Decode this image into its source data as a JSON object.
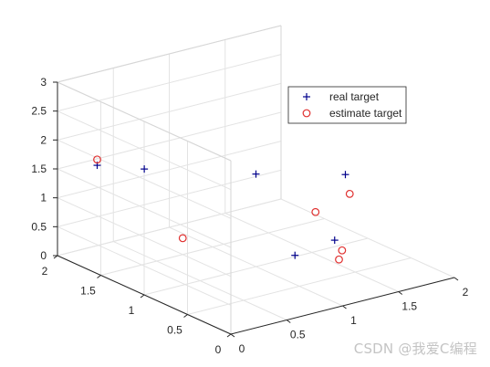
{
  "chart_data": {
    "type": "scatter",
    "dims": 3,
    "title": "",
    "xlabel": "",
    "ylabel": "",
    "zlabel": "",
    "xlim": [
      0,
      2
    ],
    "ylim": [
      0,
      2
    ],
    "zlim": [
      0,
      3
    ],
    "xticks": [
      "0",
      "0.5",
      "1",
      "1.5",
      "2"
    ],
    "yticks": [
      "0",
      "0.5",
      "1",
      "1.5",
      "2"
    ],
    "zticks": [
      "0",
      "0.5",
      "1",
      "1.5",
      "2",
      "2.5",
      "3"
    ],
    "grid": true,
    "legend_position": "top-right",
    "series": [
      {
        "name": "real target",
        "marker": "plus",
        "color": "#00008B",
        "points": [
          {
            "x": 0.2,
            "y": 1.8,
            "z": 1.6
          },
          {
            "x": 0.35,
            "y": 1.45,
            "z": 1.7
          },
          {
            "x": 1.0,
            "y": 1.0,
            "z": 1.6
          },
          {
            "x": 1.2,
            "y": 0.35,
            "z": 0.8
          },
          {
            "x": 1.8,
            "y": 1.0,
            "z": 1.2
          },
          {
            "x": 1.0,
            "y": 0.55,
            "z": 0.5
          }
        ]
      },
      {
        "name": "estimate target",
        "marker": "circle",
        "color": "#E0302F",
        "points": [
          {
            "x": 0.2,
            "y": 1.8,
            "z": 1.7
          },
          {
            "x": 0.5,
            "y": 1.2,
            "z": 0.6
          },
          {
            "x": 1.3,
            "y": 0.7,
            "z": 1.0
          },
          {
            "x": 1.2,
            "y": 0.3,
            "z": 0.5
          },
          {
            "x": 1.8,
            "y": 0.95,
            "z": 0.9
          },
          {
            "x": 1.15,
            "y": 0.2,
            "z": 0.75
          }
        ]
      }
    ]
  },
  "watermark": "CSDN @我爱C编程"
}
